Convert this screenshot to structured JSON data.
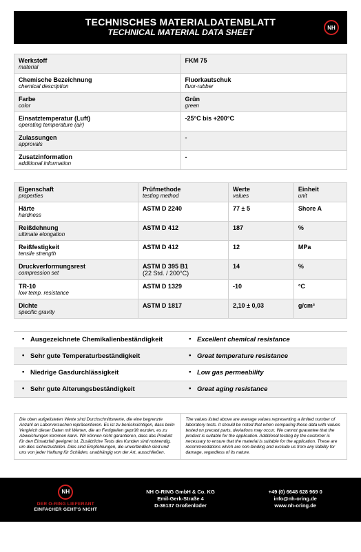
{
  "colors": {
    "header_bg": "#000000",
    "header_text": "#ffffff",
    "logo_red": "#d02121",
    "stripe_bg": "#efefef",
    "border": "#cfcfcf"
  },
  "header": {
    "title_de": "TECHNISCHES MATERIALDATENBLATT",
    "title_en": "TECHNICAL MATERIAL DATA SHEET",
    "logo_text": "NH"
  },
  "material_table": {
    "rows": [
      {
        "label_de": "Werkstoff",
        "label_en": "material",
        "value": "FKM 75",
        "value_sub": ""
      },
      {
        "label_de": "Chemische Bezeichnung",
        "label_en": "chemical description",
        "value": "Fluorkautschuk",
        "value_sub": "fluor-rubber"
      },
      {
        "label_de": "Farbe",
        "label_en": "color",
        "value": "Grün",
        "value_sub": "green"
      },
      {
        "label_de": "Einsatztemperatur (Luft)",
        "label_en": "operating temperature (air)",
        "value": "-25°C bis +200°C",
        "value_sub": ""
      },
      {
        "label_de": "Zulassungen",
        "label_en": "approvals",
        "value": "-",
        "value_sub": ""
      },
      {
        "label_de": "Zusatzinformation",
        "label_en": "additional information",
        "value": "-",
        "value_sub": ""
      }
    ]
  },
  "properties_table": {
    "head": {
      "c1_de": "Eigenschaft",
      "c1_en": "properties",
      "c2_de": "Prüfmethode",
      "c2_en": "testing method",
      "c3_de": "Werte",
      "c3_en": "values",
      "c4_de": "Einheit",
      "c4_en": "unit"
    },
    "rows": [
      {
        "prop_de": "Härte",
        "prop_en": "hardness",
        "method": "ASTM D 2240",
        "method_sub": "",
        "value": "77 ± 5",
        "unit": "Shore A"
      },
      {
        "prop_de": "Reißdehnung",
        "prop_en": "ultimate elongation",
        "method": "ASTM D 412",
        "method_sub": "",
        "value": "187",
        "unit": "%"
      },
      {
        "prop_de": "Reißfestigkeit",
        "prop_en": "tensile strength",
        "method": "ASTM D 412",
        "method_sub": "",
        "value": "12",
        "unit": "MPa"
      },
      {
        "prop_de": "Druckverformungsrest",
        "prop_en": "compression set",
        "method": "ASTM D 395 B1",
        "method_sub": "(22 Std. / 200°C)",
        "value": "14",
        "unit": "%"
      },
      {
        "prop_de": "TR-10",
        "prop_en": "low temp. resistance",
        "method": "ASTM D 1329",
        "method_sub": "",
        "value": "-10",
        "unit": "°C"
      },
      {
        "prop_de": "Dichte",
        "prop_en": "specific gravity",
        "method": "ASTM D 1817",
        "method_sub": "",
        "value": "2,10 ± 0,03",
        "unit": "g/cm³"
      }
    ]
  },
  "features": {
    "rows": [
      {
        "de": "Ausgezeichnete Chemikalienbeständigkeit",
        "en": "Excellent chemical resistance"
      },
      {
        "de": "Sehr gute Temperaturbeständigkeit",
        "en": "Great temperature resistance"
      },
      {
        "de": "Niedrige Gasdurchlässigkeit",
        "en": "Low gas permeability"
      },
      {
        "de": "Sehr gute Alterungsbeständigkeit",
        "en": "Great aging resistance"
      }
    ]
  },
  "disclaimer": {
    "de": "Die oben aufgelisteten Werte sind Durchschnittswerte, die eine begrenzte Anzahl an Laborversuchen repräsentieren. Es ist zu berücksichtigen, dass beim Vergleich dieser Daten mit Werten, die an Fertigteilen geprüft wurden, es zu Abweichungen kommen kann. Wir können nicht garantieren, dass das Produkt für den Einsatzfall geeignet ist. Zusätzliche Tests des Kunden sind notwendig, um dies sicherzustellen.\nDies sind Empfehlungen, die unverbindlich sind und uns von jeder Haftung für Schäden, unabhängig von der Art, ausschließen.",
    "en": "The values listed above are average values representing a limited number of laboratory tests. It should be noted that when comparing these data with values tested on precast parts, deviations may occur. We cannot guarantee that the product is suitable for the application. Additional testing by the customer is necessary to ensure that the material is suitable for the application.\nThese are recommendations which are non-binding and exclude us from any liability for damage, regardless of its nature."
  },
  "footer": {
    "logo_text": "NH",
    "left_line1": "DER O-RING LIEFERANT",
    "left_line2": "EINFACHER GEHT'S NICHT",
    "company": "NH O-RING GmbH & Co. KG",
    "street": "Emil-Gerk-Straße 4",
    "city": "D-36137 Großenlüder",
    "phone": "+49 (0) 6648 628 969 0",
    "email": "info@nh-oring.de",
    "web": "www.nh-oring.de"
  }
}
